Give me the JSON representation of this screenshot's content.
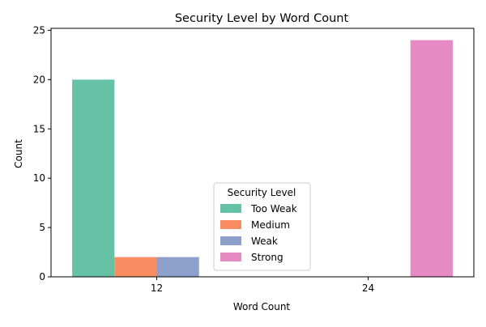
{
  "chart_data": {
    "type": "bar",
    "title": "Security Level by Word Count",
    "xlabel": "Word Count",
    "ylabel": "Count",
    "categories": [
      "12",
      "24"
    ],
    "ylim": [
      0,
      25.2
    ],
    "yticks": [
      0,
      5,
      10,
      15,
      20,
      25
    ],
    "grid": false,
    "legend": {
      "title": "Security Level",
      "placement": "lower-center"
    },
    "series": [
      {
        "name": "Too Weak",
        "color": "#66c2a5",
        "values": [
          20,
          0
        ]
      },
      {
        "name": "Medium",
        "color": "#fc8d62",
        "values": [
          2,
          0
        ]
      },
      {
        "name": "Weak",
        "color": "#8da0cb",
        "values": [
          2,
          0
        ]
      },
      {
        "name": "Strong",
        "color": "#e78ac3",
        "values": [
          0,
          24
        ]
      }
    ]
  }
}
